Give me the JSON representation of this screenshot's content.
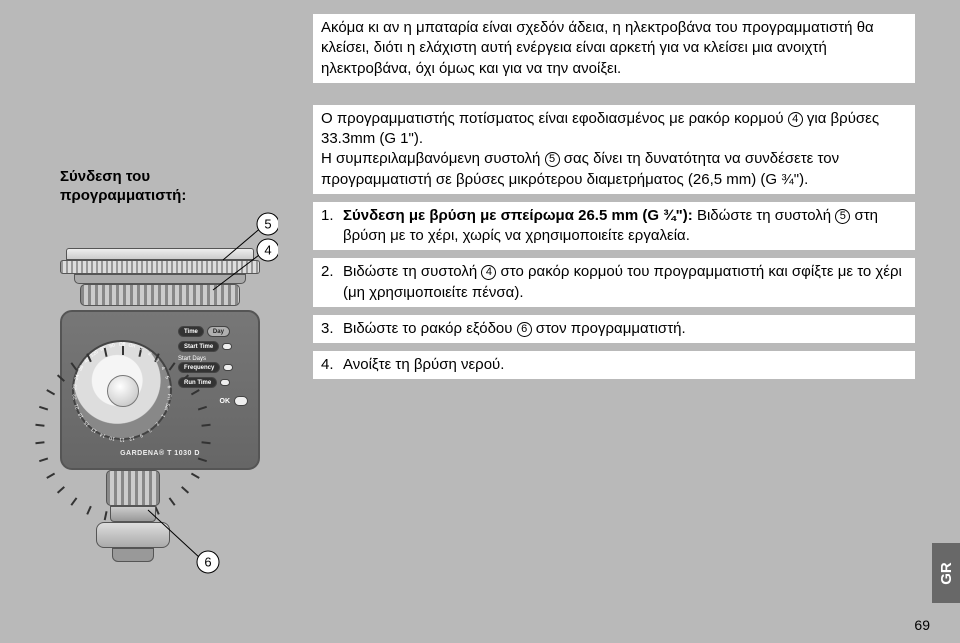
{
  "intro_para": "Ακόμα κι αν η μπαταρία είναι σχεδόν άδεια, η ηλεκτροβάνα του προγραμματιστή θα κλείσει, διότι η ελάχιστη αυτή ενέργεια είναι αρκετή για να κλείσει μια ανοιχτή ηλεκτροβάνα, όχι όμως και για να την ανοίξει.",
  "section_label": "Σύνδεση του προγραμματιστή:",
  "lead1_a": "Ο προγραμματιστής ποτίσματος είναι εφοδιασμένος με ρακόρ κορμού ",
  "circ4": "4",
  "lead1_b": " για βρύσες 33.3mm (G 1\").",
  "lead2_a": "Η συμπεριλαμβανόμενη συστολή ",
  "circ5": "5",
  "lead2_b": " σας δίνει τη δυνατότητα να συνδέσετε τον προγραμματιστή σε βρύσες μικρότερου διαμετρήματος (26,5 mm) (G ¾\").",
  "steps": [
    {
      "n": "1.",
      "bold": "Σύνδεση με βρύση με σπείρωμα 26.5 mm (G ¾\"): ",
      "rest_a": "Βιδώστε τη συστολή ",
      "circ": "5",
      "rest_b": " στη βρύση με το χέρι, χωρίς να χρησιμοποιείτε εργαλεία."
    },
    {
      "n": "2.",
      "rest_a": "Βιδώστε τη συστολή ",
      "circ": "4",
      "rest_b": " στο ρακόρ κορμού του προγραμματιστή και σφίξτε με το χέρι (μη χρησιμοποιείτε πένσα)."
    },
    {
      "n": "3.",
      "rest_a": "Βιδώστε το ρακόρ εξόδου ",
      "circ": "6",
      "rest_b": " στον προγραμματιστή."
    },
    {
      "n": "4.",
      "rest_a": "Ανοίξτε τη βρύση νερού.",
      "circ": "",
      "rest_b": ""
    }
  ],
  "side_tab": "GR",
  "page_number": "69",
  "callouts": {
    "c5": "5",
    "c4": "4",
    "c6": "6"
  },
  "dial_labels": [
    "Off",
    "On",
    "1",
    "2",
    "3",
    "4",
    "5",
    "6",
    "Fri",
    "Sat",
    "1",
    "2",
    "3",
    "9",
    "12",
    "11",
    "10",
    "14",
    "13",
    "15",
    "18",
    "21",
    "22",
    "23",
    "24",
    "36",
    "48",
    "120",
    "90",
    "60"
  ],
  "dial_caption_top": "Run Time Minutes",
  "controls": {
    "time": "Time",
    "day": "Day",
    "start": "Start Time",
    "days": "Start Days",
    "freq": "Frequency",
    "run": "Run Time",
    "ok": "OK"
  },
  "brand": "GARDENA® T 1030 D"
}
